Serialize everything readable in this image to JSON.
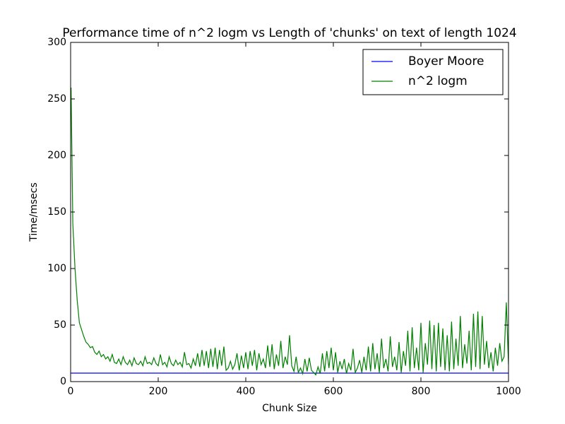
{
  "chart_data": {
    "type": "line",
    "title": "Performance time of n^2 logm vs Length of 'chunks' on text of length 1024",
    "xlabel": "Chunk Size",
    "ylabel": "Time/msecs",
    "xlim": [
      0,
      1000
    ],
    "ylim": [
      0,
      300
    ],
    "xticks": [
      0,
      200,
      400,
      600,
      800,
      1000
    ],
    "yticks": [
      0,
      50,
      100,
      150,
      200,
      250,
      300
    ],
    "legend": "upper right",
    "series": [
      {
        "name": "Boyer Moore",
        "color": "#0000ff",
        "x": [
          0,
          1000
        ],
        "values": [
          7.5,
          7.5
        ]
      },
      {
        "name": "n^2 logm",
        "color": "#008000",
        "x": [
          1,
          5,
          10,
          15,
          20,
          25,
          30,
          35,
          40,
          45,
          50,
          55,
          60,
          65,
          70,
          75,
          80,
          85,
          90,
          95,
          100,
          105,
          110,
          115,
          120,
          125,
          130,
          135,
          140,
          145,
          150,
          155,
          160,
          165,
          170,
          175,
          180,
          185,
          190,
          195,
          200,
          205,
          210,
          215,
          220,
          225,
          230,
          235,
          240,
          245,
          250,
          255,
          260,
          265,
          270,
          275,
          280,
          285,
          290,
          295,
          300,
          305,
          310,
          315,
          320,
          325,
          330,
          335,
          340,
          345,
          350,
          355,
          360,
          365,
          370,
          375,
          380,
          385,
          390,
          395,
          400,
          405,
          410,
          415,
          420,
          425,
          430,
          435,
          440,
          445,
          450,
          455,
          460,
          465,
          470,
          475,
          480,
          485,
          490,
          495,
          500,
          505,
          510,
          515,
          520,
          525,
          530,
          535,
          540,
          545,
          550,
          555,
          560,
          565,
          570,
          575,
          580,
          585,
          590,
          595,
          600,
          605,
          610,
          615,
          620,
          625,
          630,
          635,
          640,
          645,
          650,
          655,
          660,
          665,
          670,
          675,
          680,
          685,
          690,
          695,
          700,
          705,
          710,
          715,
          720,
          725,
          730,
          735,
          740,
          745,
          750,
          755,
          760,
          765,
          770,
          775,
          780,
          785,
          790,
          795,
          800,
          805,
          810,
          815,
          820,
          825,
          830,
          835,
          840,
          845,
          850,
          855,
          860,
          865,
          870,
          875,
          880,
          885,
          890,
          895,
          900,
          905,
          910,
          915,
          920,
          925,
          930,
          935,
          940,
          945,
          950,
          955,
          960,
          965,
          970,
          975,
          980,
          985,
          990,
          995,
          1000
        ],
        "values": [
          260,
          140,
          100,
          72,
          52,
          46,
          40,
          35,
          33,
          30,
          31,
          26,
          24,
          27,
          22,
          24,
          20,
          22,
          18,
          24,
          17,
          16,
          20,
          15,
          22,
          17,
          15,
          19,
          14,
          21,
          16,
          15,
          18,
          14,
          22,
          16,
          17,
          15,
          21,
          16,
          14,
          24,
          15,
          17,
          13,
          22,
          16,
          14,
          19,
          15,
          17,
          13,
          26,
          15,
          16,
          12,
          20,
          14,
          25,
          13,
          28,
          14,
          27,
          12,
          29,
          13,
          30,
          11,
          28,
          14,
          31,
          10,
          12,
          18,
          11,
          15,
          25,
          10,
          23,
          12,
          26,
          11,
          27,
          14,
          28,
          10,
          25,
          15,
          20,
          12,
          32,
          13,
          33,
          11,
          24,
          14,
          36,
          12,
          22,
          15,
          41,
          14,
          9,
          22,
          8,
          12,
          7,
          20,
          9,
          21,
          10,
          8,
          6,
          13,
          7,
          25,
          9,
          27,
          12,
          30,
          10,
          26,
          8,
          18,
          11,
          20,
          7,
          16,
          10,
          29,
          8,
          12,
          19,
          8,
          22,
          10,
          31,
          9,
          34,
          11,
          25,
          8,
          38,
          12,
          20,
          9,
          40,
          13,
          22,
          10,
          35,
          8,
          27,
          14,
          45,
          9,
          48,
          12,
          30,
          10,
          52,
          8,
          34,
          15,
          54,
          11,
          50,
          9,
          52,
          13,
          47,
          10,
          41,
          9,
          53,
          11,
          38,
          14,
          58,
          12,
          33,
          16,
          45,
          10,
          60,
          13,
          62,
          11,
          58,
          15,
          36,
          12,
          26,
          9,
          30,
          14,
          34,
          18,
          22,
          70,
          15
        ]
      }
    ]
  }
}
